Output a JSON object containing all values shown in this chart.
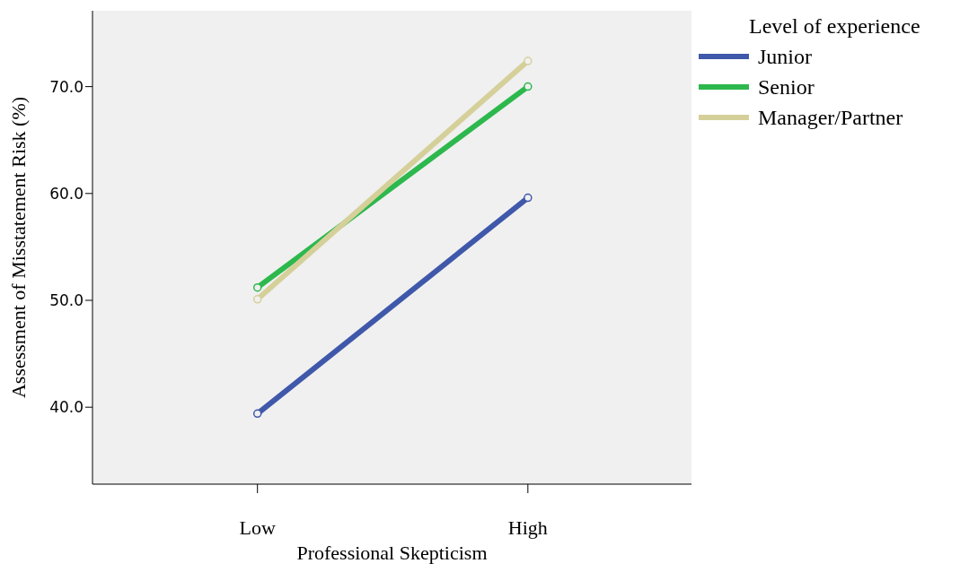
{
  "chart_data": {
    "type": "line",
    "xlabel": "Professional Skepticism",
    "ylabel": "Assessment of Misstatement Risk (%)",
    "legend_title": "Level of experience",
    "categories": [
      "Low",
      "High"
    ],
    "series": [
      {
        "name": "Junior",
        "color": "#3f58aa",
        "values": [
          39.4,
          59.6
        ]
      },
      {
        "name": "Senior",
        "color": "#2db84d",
        "values": [
          51.2,
          70.0
        ]
      },
      {
        "name": "Manager/Partner",
        "color": "#d5d09a",
        "values": [
          50.1,
          72.4
        ]
      }
    ],
    "ylim": [
      32.8,
      77.1
    ],
    "yticks": [
      {
        "value": 40,
        "label": "40.0"
      },
      {
        "value": 50,
        "label": "50.0"
      },
      {
        "value": 60,
        "label": "60.0"
      },
      {
        "value": 70,
        "label": "70.0"
      }
    ],
    "grid": false,
    "legend": "top right",
    "marker": "circle",
    "line_style": "solid"
  }
}
